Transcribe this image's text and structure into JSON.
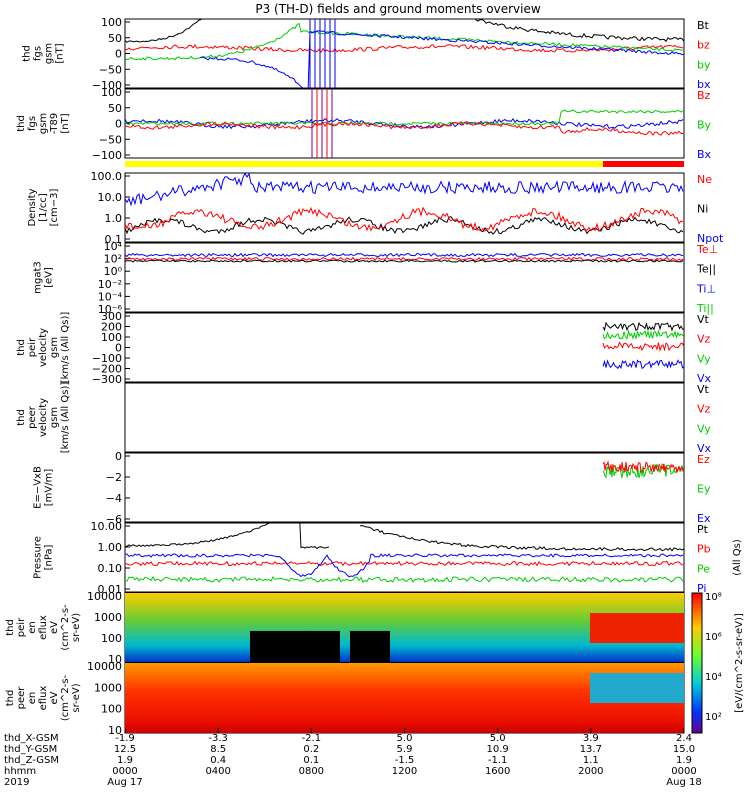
{
  "chart_data": {
    "type": "line",
    "title": "P3 (TH-D) fields and ground moments overview",
    "time_axis": {
      "hhmm": [
        "0000",
        "0400",
        "0800",
        "1200",
        "1600",
        "2000",
        "0000"
      ],
      "row_labels": [
        "thd_X-GSM",
        "thd_Y-GSM",
        "thd_Z-GSM",
        "hhmm",
        "2019"
      ],
      "dates": [
        {
          "at": "0000",
          "label": "Aug 17"
        },
        {
          "at": "0000+1",
          "label": "Aug 18"
        }
      ],
      "X_GSM": [
        "-1.9",
        "-3.3",
        "-2.1",
        "5.0",
        "5.0",
        "3.9",
        "2.4"
      ],
      "Y_GSM": [
        "12.5",
        "8.5",
        "0.2",
        "5.9",
        "10.9",
        "13.7",
        "15.0"
      ],
      "Z_GSM": [
        "1.9",
        "0.4",
        "0.1",
        "-1.5",
        "-1.1",
        "1.1",
        "1.9"
      ]
    },
    "panels": [
      {
        "id": "fgs",
        "ylabel": [
          "thd",
          "fgs",
          "gsm",
          "[nT]"
        ],
        "yticks": [
          "100",
          "50",
          "0",
          "−50",
          "−100"
        ],
        "ylim": [
          -100,
          100
        ],
        "legend": [
          {
            "name": "Bt",
            "color": "#000000"
          },
          {
            "name": "bz",
            "color": "#ff0000"
          },
          {
            "name": "by",
            "color": "#00cc00"
          },
          {
            "name": "bx",
            "color": "#0000ff"
          }
        ]
      },
      {
        "id": "fgs_dip",
        "ylabel": [
          "thd",
          "fgs",
          "gsm",
          "-T89",
          "[nT]"
        ],
        "yticks": [
          "100",
          "50",
          "0",
          "−50",
          "−100"
        ],
        "ylim": [
          -125,
          125
        ],
        "legend": [
          {
            "name": "Bz",
            "color": "#ff0000"
          },
          {
            "name": "By",
            "color": "#00cc00"
          },
          {
            "name": "Bx",
            "color": "#0000ff"
          }
        ]
      },
      {
        "id": "density",
        "ylabel": [
          "Density",
          "[1/cc]",
          "[cm−3]"
        ],
        "yticks": [
          "100.0",
          "10.0",
          "1.0",
          "0.1"
        ],
        "scale": "log",
        "ylim": [
          0.05,
          200
        ],
        "legend": [
          {
            "name": "Ne",
            "color": "#ff0000"
          },
          {
            "name": "Ni",
            "color": "#000000"
          },
          {
            "name": "Npot",
            "color": "#0000ff"
          }
        ]
      },
      {
        "id": "temperature",
        "ylabel": [
          "mgat3",
          "[eV]"
        ],
        "yticks": [
          "10⁴",
          "10²",
          "10⁰",
          "10⁻²",
          "10⁻⁴",
          "10⁻⁶"
        ],
        "scale": "log",
        "legend": [
          {
            "name": "Te⊥",
            "color": "#ff0000"
          },
          {
            "name": "Te||",
            "color": "#000000"
          },
          {
            "name": "Ti⊥",
            "color": "#0000ff"
          },
          {
            "name": "Ti||",
            "color": "#00cc00"
          }
        ]
      },
      {
        "id": "peir_velocity",
        "ylabel": [
          "thd",
          "peir",
          "velocity",
          "gsm",
          "[km/s (All Qs)]"
        ],
        "yticks": [
          "300",
          "200",
          "100",
          "0",
          "−100",
          "−200",
          "−300"
        ],
        "ylim": [
          -300,
          300
        ],
        "legend": [
          {
            "name": "Vt",
            "color": "#000000"
          },
          {
            "name": "Vz",
            "color": "#ff0000"
          },
          {
            "name": "Vy",
            "color": "#00cc00"
          },
          {
            "name": "Vx",
            "color": "#0000ff"
          }
        ],
        "late_values": {
          "Vt": 200,
          "Vy": 120,
          "Vz": 10,
          "Vx": -160
        }
      },
      {
        "id": "peer_velocity",
        "ylabel": [
          "thd",
          "peer",
          "velocity",
          "gsm",
          "[km/s (All Qs)]"
        ],
        "yticks": [],
        "legend": [
          {
            "name": "Vt",
            "color": "#000000"
          },
          {
            "name": "Vz",
            "color": "#ff0000"
          },
          {
            "name": "Vy",
            "color": "#00cc00"
          },
          {
            "name": "Vx",
            "color": "#0000ff"
          }
        ]
      },
      {
        "id": "efield",
        "ylabel": [
          "E=−VxB",
          "[mV/m]"
        ],
        "yticks": [
          "0",
          "−2",
          "−4",
          "−6"
        ],
        "ylim": [
          -6.2,
          1.2
        ],
        "legend": [
          {
            "name": "Ez",
            "color": "#ff0000"
          },
          {
            "name": "Ey",
            "color": "#00cc00"
          },
          {
            "name": "Ex",
            "color": "#0000ff"
          }
        ]
      },
      {
        "id": "pressure",
        "ylabel": [
          "Pressure",
          "[nPa]"
        ],
        "yticks": [
          "10.00",
          "1.00",
          "0.10",
          "0.01"
        ],
        "scale": "log",
        "ylim": [
          0.004,
          20
        ],
        "legend": [
          {
            "name": "Pt",
            "color": "#000000"
          },
          {
            "name": "Pb",
            "color": "#ff0000"
          },
          {
            "name": "Pe",
            "color": "#00cc00"
          },
          {
            "name": "Pi",
            "color": "#0000ff"
          }
        ],
        "side_label": "(All Qs)"
      },
      {
        "id": "peir_eflux",
        "type": "heatmap",
        "ylabel": [
          "thd",
          "peir",
          "en",
          "eflux",
          "eV",
          "(cm^2-s-",
          "sr-eV)"
        ],
        "yticks": [
          "10000",
          "1000",
          "100",
          "10"
        ]
      },
      {
        "id": "peer_eflux",
        "type": "heatmap",
        "ylabel": [
          "thd",
          "peer",
          "en",
          "eflux",
          "eV",
          "(cm^2-s-",
          "sr-eV)"
        ],
        "yticks": [
          "10000",
          "1000",
          "100",
          "10"
        ]
      }
    ],
    "colorbar": {
      "ticks": [
        "10⁸",
        "10⁶",
        "10⁴",
        "10²"
      ],
      "label": "[eV/(cm^2-s-sr-eV)]"
    },
    "mode_bar": {
      "yellow_until_hhmm": "2000",
      "red_after_hhmm": "2000"
    }
  },
  "colors": {
    "black": "#000000",
    "red": "#ff0000",
    "green": "#00cc00",
    "blue": "#0000ff",
    "yellow": "#ffff00"
  }
}
